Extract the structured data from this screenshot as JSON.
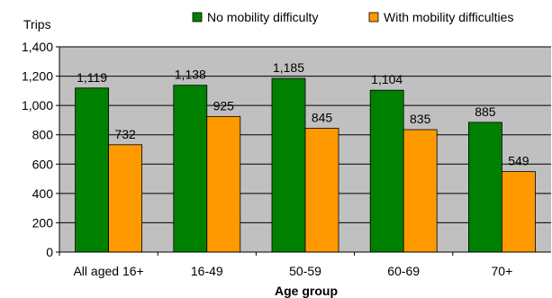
{
  "chart_data": {
    "type": "bar",
    "ylabel": "Trips",
    "xlabel": "Age group",
    "categories": [
      "All aged 16+",
      "16-49",
      "50-59",
      "60-69",
      "70+"
    ],
    "series": [
      {
        "name": "No mobility difficulty",
        "color": "#008000",
        "values": [
          1119,
          1138,
          1185,
          1104,
          885
        ],
        "labels": [
          "1,119",
          "1,138",
          "1,185",
          "1,104",
          "885"
        ]
      },
      {
        "name": "With mobility difficulties",
        "color": "#FF9900",
        "values": [
          732,
          925,
          845,
          835,
          549
        ],
        "labels": [
          "732",
          "925",
          "845",
          "835",
          "549"
        ]
      }
    ],
    "ylim": [
      0,
      1400
    ],
    "yticks": [
      0,
      200,
      400,
      600,
      800,
      1000,
      1200,
      1400
    ],
    "ytick_labels": [
      "0",
      "200",
      "400",
      "600",
      "800",
      "1,000",
      "1,200",
      "1,400"
    ],
    "grid": true,
    "plot_background": "#C0C0C0",
    "legend_position": "top"
  }
}
